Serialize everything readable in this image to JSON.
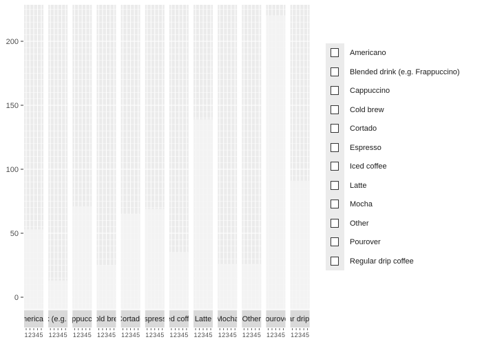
{
  "chart_data": {
    "type": "bar",
    "facet_by": "drink",
    "x_categories": [
      "1",
      "2",
      "3",
      "4",
      "5"
    ],
    "ylim": [
      -10,
      228
    ],
    "y_ticks": [
      0,
      50,
      100,
      150,
      200
    ],
    "grid": true,
    "legend_position": "right",
    "panels": [
      {
        "strip": "Americano",
        "top": 53
      },
      {
        "strip": "Blended drink (e.g. Frappuccino)",
        "top": 13
      },
      {
        "strip": "Cappuccino",
        "top": 71
      },
      {
        "strip": "Cold brew",
        "top": 25
      },
      {
        "strip": "Cortado",
        "top": 65
      },
      {
        "strip": "Espresso",
        "top": 69
      },
      {
        "strip": "Iced coffee",
        "top": 35
      },
      {
        "strip": "Latte",
        "top": 139
      },
      {
        "strip": "Mocha",
        "top": 26
      },
      {
        "strip": "Other",
        "top": 26
      },
      {
        "strip": "Pourover",
        "top": 220
      },
      {
        "strip": "Regular drip coffee",
        "top": 91
      }
    ],
    "legend": [
      "Americano",
      "Blended drink (e.g. Frappuccino)",
      "Cappuccino",
      "Cold brew",
      "Cortado",
      "Espresso",
      "Iced coffee",
      "Latte",
      "Mocha",
      "Other",
      "Pourover",
      "Regular drip coffee"
    ],
    "colors": {
      "panel_background": "#ebebeb",
      "grid_line": "#ffffff",
      "bar_fill": "#f5f5f5",
      "strip_background": "#d9d9d9",
      "axis_text": "#4d4d4d",
      "legend_box_border": "#333333"
    }
  }
}
